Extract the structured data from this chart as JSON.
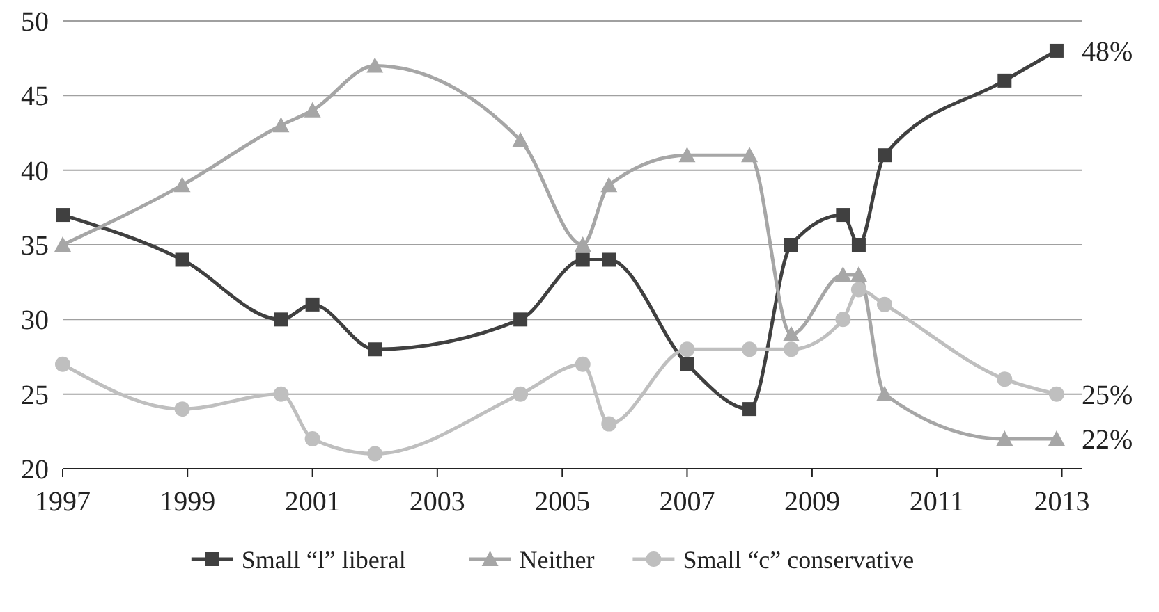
{
  "chart_data": {
    "type": "line",
    "x": [
      "1997-01",
      "1998-12",
      "2000-07",
      "2001-01",
      "2002-01",
      "2004-05",
      "2005-05",
      "2005-10",
      "2007-01",
      "2008-01",
      "2008-09",
      "2009-07",
      "2009-10",
      "2010-03",
      "2012-02",
      "2012-12"
    ],
    "series": [
      {
        "name": "Small “l” liberal",
        "color": "#404040",
        "marker": "square",
        "values": [
          37,
          34,
          30,
          31,
          28,
          30,
          34,
          34,
          27,
          24,
          35,
          37,
          35,
          41,
          46,
          48
        ]
      },
      {
        "name": "Neither",
        "color": "#a6a6a6",
        "marker": "triangle",
        "values": [
          35,
          39,
          43,
          44,
          47,
          42,
          35,
          39,
          41,
          41,
          29,
          33,
          33,
          25,
          22,
          22
        ]
      },
      {
        "name": "Small “c” conservative",
        "color": "#bfbfbf",
        "marker": "circle",
        "values": [
          27,
          24,
          25,
          22,
          21,
          25,
          27,
          23,
          28,
          28,
          28,
          30,
          32,
          31,
          26,
          25
        ]
      }
    ],
    "xlim": [
      "1997-01",
      "2013-05"
    ],
    "xticks": [
      "1997",
      "1999",
      "2001",
      "2003",
      "2005",
      "2007",
      "2009",
      "2011",
      "2013"
    ],
    "ylim": [
      20,
      50
    ],
    "yticks": [
      20,
      25,
      30,
      35,
      40,
      45,
      50
    ],
    "grid": "y",
    "legend": "bottom",
    "line_style": "solid",
    "annotations": [
      {
        "text": "48%",
        "x": "2012-12",
        "y": 48
      },
      {
        "text": "25%",
        "x": "2012-12",
        "y": 25
      },
      {
        "text": "22%",
        "x": "2012-12",
        "y": 22
      }
    ]
  }
}
